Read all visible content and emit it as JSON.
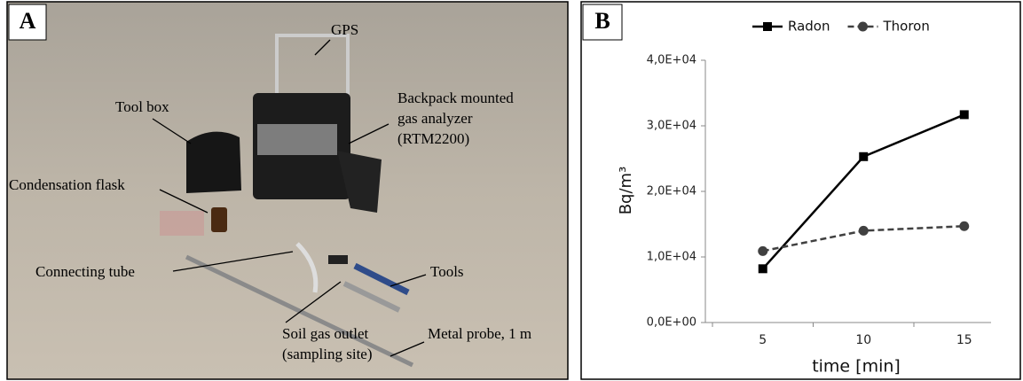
{
  "panels": {
    "a": {
      "label": "A",
      "annotations": [
        {
          "lines": [
            "GPS"
          ]
        },
        {
          "lines": [
            "Tool box"
          ]
        },
        {
          "lines": [
            "Backpack mounted",
            "gas analyzer",
            "(RTM2200)"
          ]
        },
        {
          "lines": [
            "Condensation flask"
          ]
        },
        {
          "lines": [
            "Connecting tube"
          ]
        },
        {
          "lines": [
            "Tools"
          ]
        },
        {
          "lines": [
            "Soil gas outlet",
            "(sampling site)"
          ]
        },
        {
          "lines": [
            "Metal probe, 1 m"
          ]
        }
      ]
    },
    "b": {
      "label": "B"
    }
  },
  "chart_data": {
    "type": "line",
    "categories": [
      "5",
      "10",
      "15"
    ],
    "series": [
      {
        "name": "Radon",
        "color": "#000000",
        "line_style": "solid",
        "marker": "square",
        "values": [
          8200,
          25300,
          31700
        ]
      },
      {
        "name": "Thoron",
        "color": "#404040",
        "line_style": "dashed",
        "marker": "circle",
        "values": [
          10900,
          14000,
          14700
        ]
      }
    ],
    "ylim": [
      0,
      40000
    ],
    "yticks": [
      {
        "value": 0,
        "label": "0,0E+00"
      },
      {
        "value": 10000,
        "label": "1,0E+04"
      },
      {
        "value": 20000,
        "label": "2,0E+04"
      },
      {
        "value": 30000,
        "label": "3,0E+04"
      },
      {
        "value": 40000,
        "label": "4,0E+04"
      }
    ],
    "x_label": "time [min]",
    "y_label": "Bq/m³",
    "legend": "top",
    "grid": false
  }
}
